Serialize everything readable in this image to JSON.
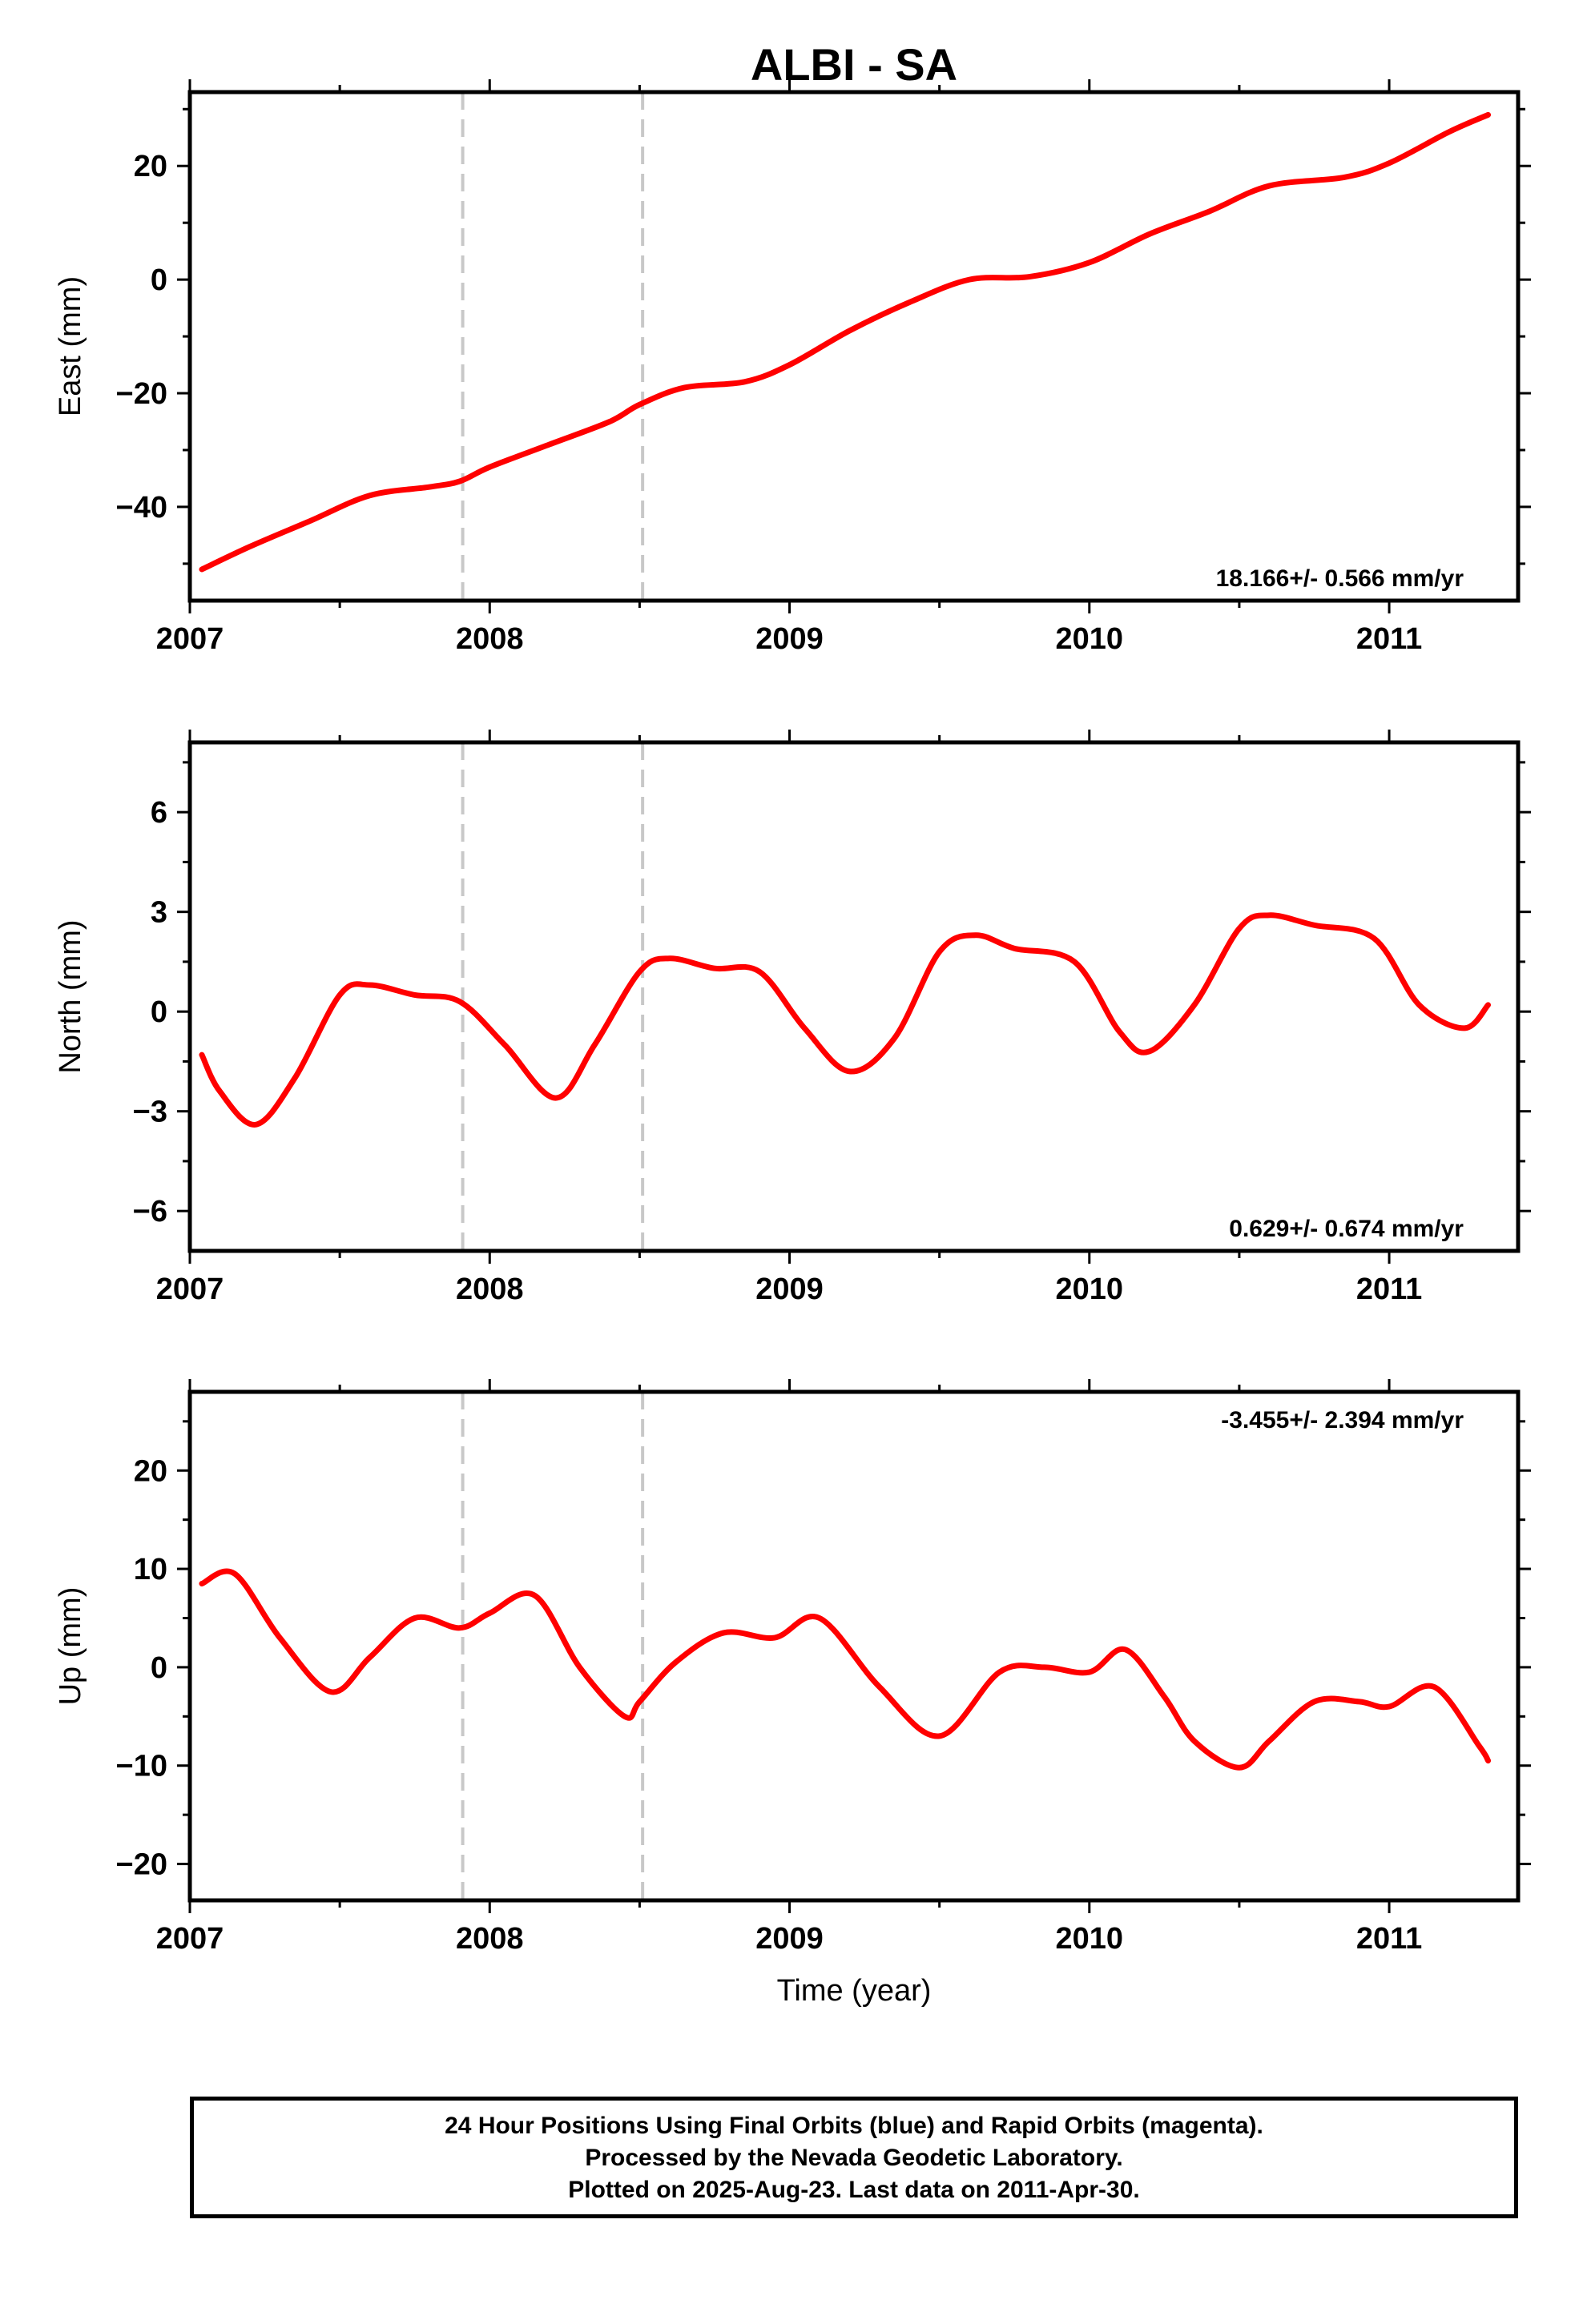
{
  "chart_data": [
    {
      "type": "scatter",
      "title": "ALBI - SA",
      "ylabel": "East (mm)",
      "xlabel": "",
      "xlim": [
        2007.0,
        2011.43
      ],
      "ylim": [
        -56.5,
        33
      ],
      "yticks": [
        -40,
        -20,
        0,
        20
      ],
      "xticks": [
        2007,
        2008,
        2009,
        2010,
        2011
      ],
      "rate_annotation": "18.166+/- 0.566 mm/yr",
      "rate_position": "bottom-right",
      "breaks": [
        2007.91,
        2008.51
      ],
      "series": [
        {
          "name": "Final Orbits",
          "color": "#0000ff",
          "values": []
        },
        {
          "name": "Model fit",
          "color": "#ff0000",
          "x": [
            2007.04,
            2007.2,
            2007.4,
            2007.6,
            2007.8,
            2007.9,
            2008.0,
            2008.2,
            2008.4,
            2008.5,
            2008.65,
            2008.85,
            2009.0,
            2009.2,
            2009.4,
            2009.6,
            2009.8,
            2010.0,
            2010.2,
            2010.4,
            2010.6,
            2010.85,
            2011.0,
            2011.2,
            2011.33
          ],
          "values": [
            -51,
            -47,
            -42.5,
            -38,
            -36.5,
            -35.5,
            -33,
            -29,
            -25,
            -22,
            -19,
            -18,
            -15,
            -9,
            -4,
            0,
            0.5,
            3,
            8,
            12,
            16.5,
            18,
            20.5,
            26,
            29
          ]
        }
      ]
    },
    {
      "type": "scatter",
      "title": "",
      "ylabel": "North (mm)",
      "xlabel": "",
      "xlim": [
        2007.0,
        2011.43
      ],
      "ylim": [
        -7.2,
        8.1
      ],
      "yticks": [
        -6,
        -3,
        0,
        3,
        6
      ],
      "xticks": [
        2007,
        2008,
        2009,
        2010,
        2011
      ],
      "rate_annotation": "0.629+/- 0.674 mm/yr",
      "rate_position": "bottom-right",
      "breaks": [
        2007.91,
        2008.51
      ],
      "series": [
        {
          "name": "Final Orbits",
          "color": "#0000ff",
          "values": []
        },
        {
          "name": "Model fit",
          "color": "#ff0000",
          "x": [
            2007.04,
            2007.1,
            2007.22,
            2007.35,
            2007.5,
            2007.6,
            2007.75,
            2007.9,
            2008.05,
            2008.22,
            2008.35,
            2008.5,
            2008.6,
            2008.75,
            2008.9,
            2009.05,
            2009.2,
            2009.35,
            2009.5,
            2009.62,
            2009.75,
            2009.95,
            2010.1,
            2010.2,
            2010.35,
            2010.5,
            2010.6,
            2010.75,
            2010.95,
            2011.1,
            2011.25,
            2011.33
          ],
          "values": [
            -1.3,
            -2.4,
            -3.4,
            -2.0,
            0.5,
            0.8,
            0.5,
            0.3,
            -1.0,
            -2.6,
            -1.0,
            1.2,
            1.6,
            1.3,
            1.2,
            -0.5,
            -1.8,
            -0.8,
            1.8,
            2.3,
            1.9,
            1.5,
            -0.6,
            -1.2,
            0.2,
            2.5,
            2.9,
            2.6,
            2.2,
            0.2,
            -0.5,
            0.2
          ]
        }
      ]
    },
    {
      "type": "scatter",
      "title": "",
      "ylabel": "Up (mm)",
      "xlabel": "Time (year)",
      "xlim": [
        2007.0,
        2011.43
      ],
      "ylim": [
        -23.7,
        28
      ],
      "yticks": [
        -20,
        -10,
        0,
        10,
        20
      ],
      "xticks": [
        2007,
        2008,
        2009,
        2010,
        2011
      ],
      "rate_annotation": "-3.455+/- 2.394 mm/yr",
      "rate_position": "top-right",
      "breaks": [
        2007.91,
        2008.51
      ],
      "series": [
        {
          "name": "Final Orbits",
          "color": "#0000ff",
          "values": []
        },
        {
          "name": "Model fit",
          "color": "#ff0000",
          "x": [
            2007.04,
            2007.15,
            2007.3,
            2007.47,
            2007.6,
            2007.75,
            2007.9,
            2008.0,
            2008.15,
            2008.3,
            2008.45,
            2008.5,
            2008.62,
            2008.78,
            2008.95,
            2009.1,
            2009.3,
            2009.5,
            2009.7,
            2009.85,
            2010.0,
            2010.12,
            2010.25,
            2010.35,
            2010.5,
            2010.6,
            2010.75,
            2010.9,
            2011.0,
            2011.15,
            2011.3,
            2011.33
          ],
          "values": [
            8.5,
            9.5,
            3,
            -2.5,
            1,
            5,
            4,
            5.5,
            7.3,
            0,
            -5,
            -3.5,
            0.5,
            3.5,
            3,
            5,
            -2,
            -7,
            -0.5,
            0,
            -0.5,
            1.8,
            -3,
            -7.5,
            -10.2,
            -7.5,
            -3.5,
            -3.5,
            -4,
            -2,
            -8,
            -9.5
          ]
        }
      ]
    }
  ],
  "footer": {
    "line1": "24 Hour Positions Using Final Orbits (blue) and Rapid Orbits (magenta).",
    "line2": "Processed by the Nevada Geodetic Laboratory.",
    "line3": "Plotted on 2025-Aug-23. Last data on 2011-Apr-30."
  }
}
